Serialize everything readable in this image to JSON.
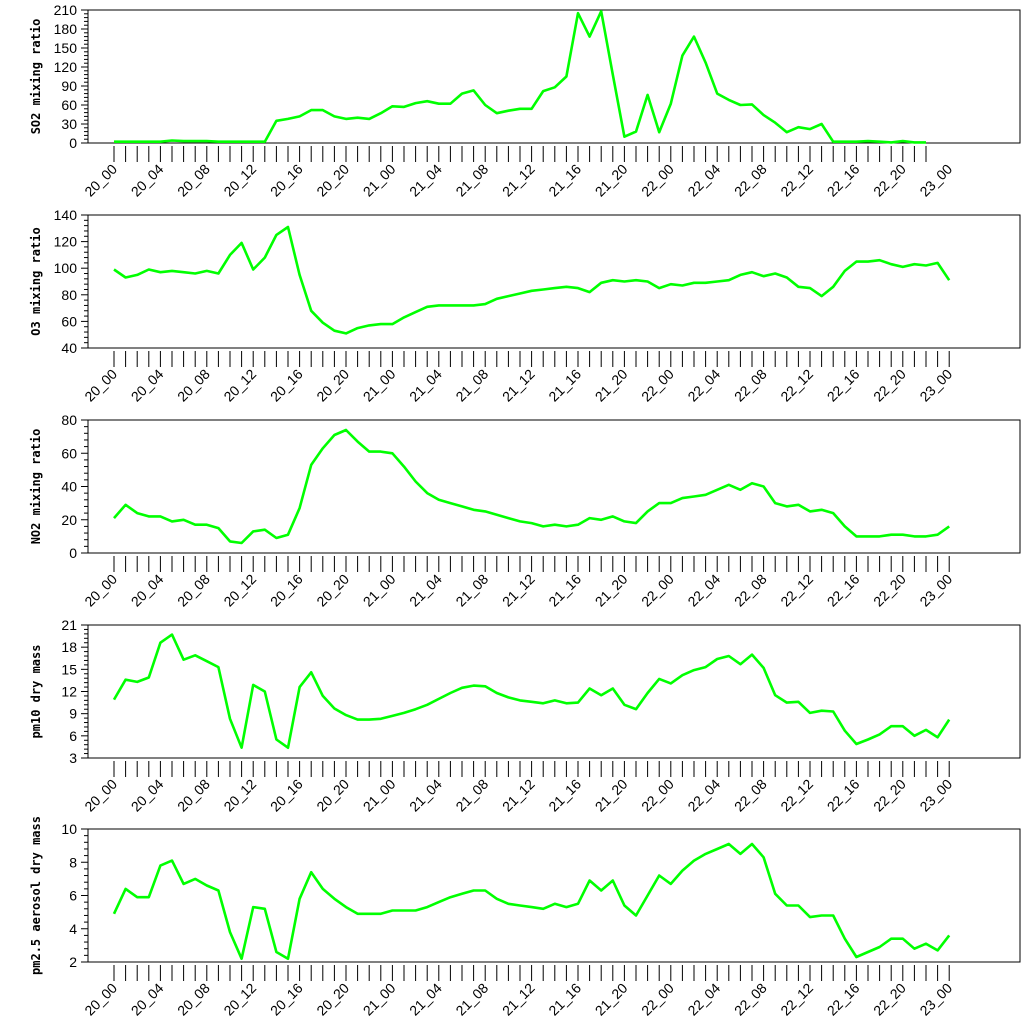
{
  "colors": {
    "series": "#00ff00",
    "axis": "#000000",
    "background": "#ffffff"
  },
  "x_tick_labels": [
    "20_00",
    "20_04",
    "20_08",
    "20_12",
    "20_16",
    "20_20",
    "21_00",
    "21_04",
    "21_08",
    "21_12",
    "21_16",
    "21_20",
    "22_00",
    "22_04",
    "22_08",
    "22_12",
    "22_16",
    "22_20",
    "23_00"
  ],
  "chart_data": [
    {
      "type": "line",
      "ylabel": "SO2 mixing ratio",
      "ylim": [
        0,
        210
      ],
      "yticks": [
        0,
        30,
        60,
        90,
        120,
        150,
        180,
        210
      ],
      "series": [
        {
          "values": [
            2,
            2,
            2,
            2,
            2,
            4,
            3,
            3,
            3,
            2,
            2,
            2,
            2,
            2,
            35,
            38,
            42,
            52,
            52,
            42,
            38,
            40,
            38,
            47,
            58,
            57,
            63,
            66,
            62,
            62,
            78,
            83,
            60,
            47,
            51,
            54,
            54,
            82,
            88,
            105,
            205,
            168,
            208,
            108,
            10,
            18,
            76,
            17,
            62,
            138,
            168,
            127,
            78,
            68,
            60,
            61,
            44,
            32,
            17,
            25,
            22,
            30,
            2,
            2,
            2,
            3,
            2,
            1,
            3,
            1,
            1
          ]
        }
      ]
    },
    {
      "type": "line",
      "ylabel": "O3 mixing ratio",
      "ylim": [
        40,
        140
      ],
      "yticks": [
        40,
        60,
        80,
        100,
        120,
        140
      ],
      "series": [
        {
          "values": [
            99,
            93,
            95,
            99,
            97,
            98,
            97,
            96,
            98,
            96,
            110,
            119,
            99,
            108,
            125,
            131,
            95,
            68,
            59,
            53,
            51,
            55,
            57,
            58,
            58,
            63,
            67,
            71,
            72,
            72,
            72,
            72,
            73,
            77,
            79,
            81,
            83,
            84,
            85,
            86,
            85,
            82,
            89,
            91,
            90,
            91,
            90,
            85,
            88,
            87,
            89,
            89,
            90,
            91,
            95,
            97,
            94,
            96,
            93,
            86,
            85,
            79,
            86,
            98,
            105,
            105,
            106,
            103,
            101,
            103,
            102,
            104,
            91
          ]
        }
      ]
    },
    {
      "type": "line",
      "ylabel": "NO2 mixing ratio",
      "ylim": [
        0,
        80
      ],
      "yticks": [
        0,
        20,
        40,
        60,
        80
      ],
      "series": [
        {
          "values": [
            21,
            29,
            24,
            22,
            22,
            19,
            20,
            17,
            17,
            15,
            7,
            6,
            13,
            14,
            9,
            11,
            27,
            53,
            63,
            71,
            74,
            67,
            61,
            61,
            60,
            52,
            43,
            36,
            32,
            30,
            28,
            26,
            25,
            23,
            21,
            19,
            18,
            16,
            17,
            16,
            17,
            21,
            20,
            22,
            19,
            18,
            25,
            30,
            30,
            33,
            34,
            35,
            38,
            41,
            38,
            42,
            40,
            30,
            28,
            29,
            25,
            26,
            24,
            16,
            10,
            10,
            10,
            11,
            11,
            10,
            10,
            11,
            16
          ]
        }
      ]
    },
    {
      "type": "line",
      "ylabel": "pm10 dry mass",
      "ylim": [
        3,
        21
      ],
      "yticks": [
        3,
        6,
        9,
        12,
        15,
        18,
        21
      ],
      "series": [
        {
          "values": [
            10.9,
            13.6,
            13.3,
            13.9,
            18.6,
            19.7,
            16.3,
            16.9,
            16.1,
            15.3,
            8.3,
            4.4,
            12.9,
            12.0,
            5.5,
            4.4,
            12.6,
            14.6,
            11.4,
            9.7,
            8.8,
            8.2,
            8.2,
            8.3,
            8.7,
            9.1,
            9.6,
            10.2,
            11.0,
            11.8,
            12.5,
            12.8,
            12.7,
            11.8,
            11.2,
            10.8,
            10.6,
            10.4,
            10.8,
            10.4,
            10.5,
            12.4,
            11.5,
            12.4,
            10.2,
            9.6,
            11.8,
            13.7,
            13.1,
            14.2,
            14.9,
            15.3,
            16.4,
            16.8,
            15.7,
            17.0,
            15.2,
            11.5,
            10.5,
            10.6,
            9.1,
            9.4,
            9.3,
            6.7,
            4.9,
            5.5,
            6.2,
            7.3,
            7.3,
            6.0,
            6.8,
            5.8,
            8.2
          ]
        }
      ]
    },
    {
      "type": "line",
      "ylabel": "pm2.5 aerosol dry mass",
      "ylim": [
        2,
        10
      ],
      "yticks": [
        2,
        4,
        6,
        8,
        10
      ],
      "series": [
        {
          "values": [
            4.9,
            6.4,
            5.9,
            5.9,
            7.8,
            8.1,
            6.7,
            7.0,
            6.6,
            6.3,
            3.8,
            2.2,
            5.3,
            5.2,
            2.6,
            2.2,
            5.8,
            7.4,
            6.4,
            5.8,
            5.3,
            4.9,
            4.9,
            4.9,
            5.1,
            5.1,
            5.1,
            5.3,
            5.6,
            5.9,
            6.1,
            6.3,
            6.3,
            5.8,
            5.5,
            5.4,
            5.3,
            5.2,
            5.5,
            5.3,
            5.5,
            6.9,
            6.3,
            6.9,
            5.4,
            4.8,
            6.0,
            7.2,
            6.7,
            7.5,
            8.1,
            8.5,
            8.8,
            9.1,
            8.5,
            9.1,
            8.3,
            6.1,
            5.4,
            5.4,
            4.7,
            4.8,
            4.8,
            3.4,
            2.3,
            2.6,
            2.9,
            3.4,
            3.4,
            2.8,
            3.1,
            2.7,
            3.6
          ]
        }
      ]
    }
  ]
}
